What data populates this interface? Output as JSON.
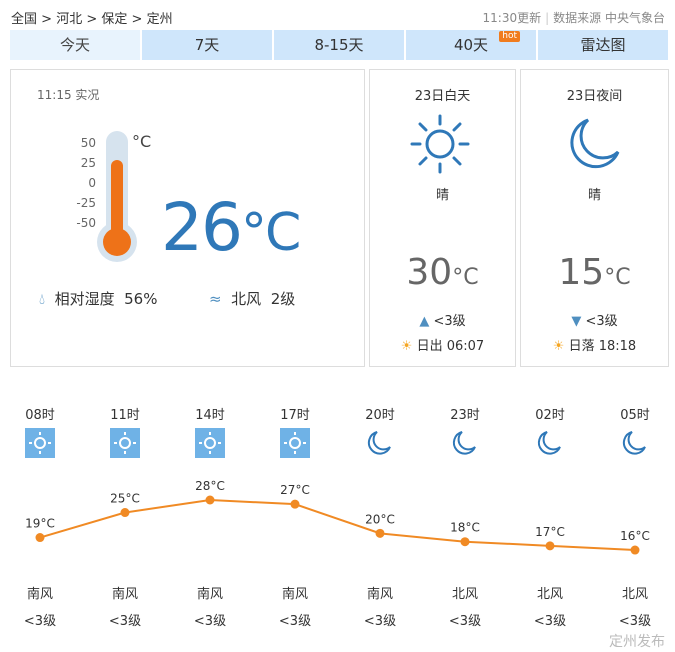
{
  "breadcrumb": [
    "全国",
    "河北",
    "保定",
    "定州"
  ],
  "source": {
    "updated": "11:30更新",
    "label": "数据来源 中央气象台"
  },
  "tabs": [
    {
      "label": "今天",
      "active": true
    },
    {
      "label": "7天"
    },
    {
      "label": "8-15天"
    },
    {
      "label": "40天",
      "badge": "hot"
    },
    {
      "label": "雷达图"
    }
  ],
  "current": {
    "time": "11:15 实况",
    "temp": "26",
    "unit": "°C",
    "scale_unit": "°C",
    "scale": [
      "50",
      "25",
      "0",
      "-25",
      "-50"
    ],
    "thermo_level_c": 26,
    "humidity_label": "相对湿度",
    "humidity": "56%",
    "wind_dir": "北风",
    "wind_level": "2级"
  },
  "day": {
    "title": "23日白天",
    "weather": "晴",
    "temp": "30",
    "unit": "°C",
    "wind": "<3级",
    "sun_label": "日出",
    "sun_time": "06:07",
    "icon": "sun-icon"
  },
  "night": {
    "title": "23日夜间",
    "weather": "晴",
    "temp": "15",
    "unit": "°C",
    "wind": "<3级",
    "sun_label": "日落",
    "sun_time": "18:18",
    "icon": "moon-icon"
  },
  "colors": {
    "accent": "#2f78b8",
    "orange": "#f08a24",
    "tab": "#cfe6fb"
  },
  "chart_data": {
    "type": "line",
    "categories": [
      "08时",
      "11时",
      "14时",
      "17时",
      "20时",
      "23时",
      "02时",
      "05时"
    ],
    "icons": [
      "sun",
      "sun",
      "sun",
      "sun",
      "moon",
      "moon",
      "moon",
      "moon"
    ],
    "values": [
      19,
      25,
      28,
      27,
      20,
      18,
      17,
      16
    ],
    "labels": [
      "19°C",
      "25°C",
      "28°C",
      "27°C",
      "20°C",
      "18°C",
      "17°C",
      "16°C"
    ],
    "wind_dir": [
      "南风",
      "南风",
      "南风",
      "南风",
      "南风",
      "北风",
      "北风",
      "北风"
    ],
    "wind_level": [
      "<3级",
      "<3级",
      "<3级",
      "<3级",
      "<3级",
      "<3级",
      "<3级",
      "<3级"
    ]
  },
  "watermark": "定州发布"
}
